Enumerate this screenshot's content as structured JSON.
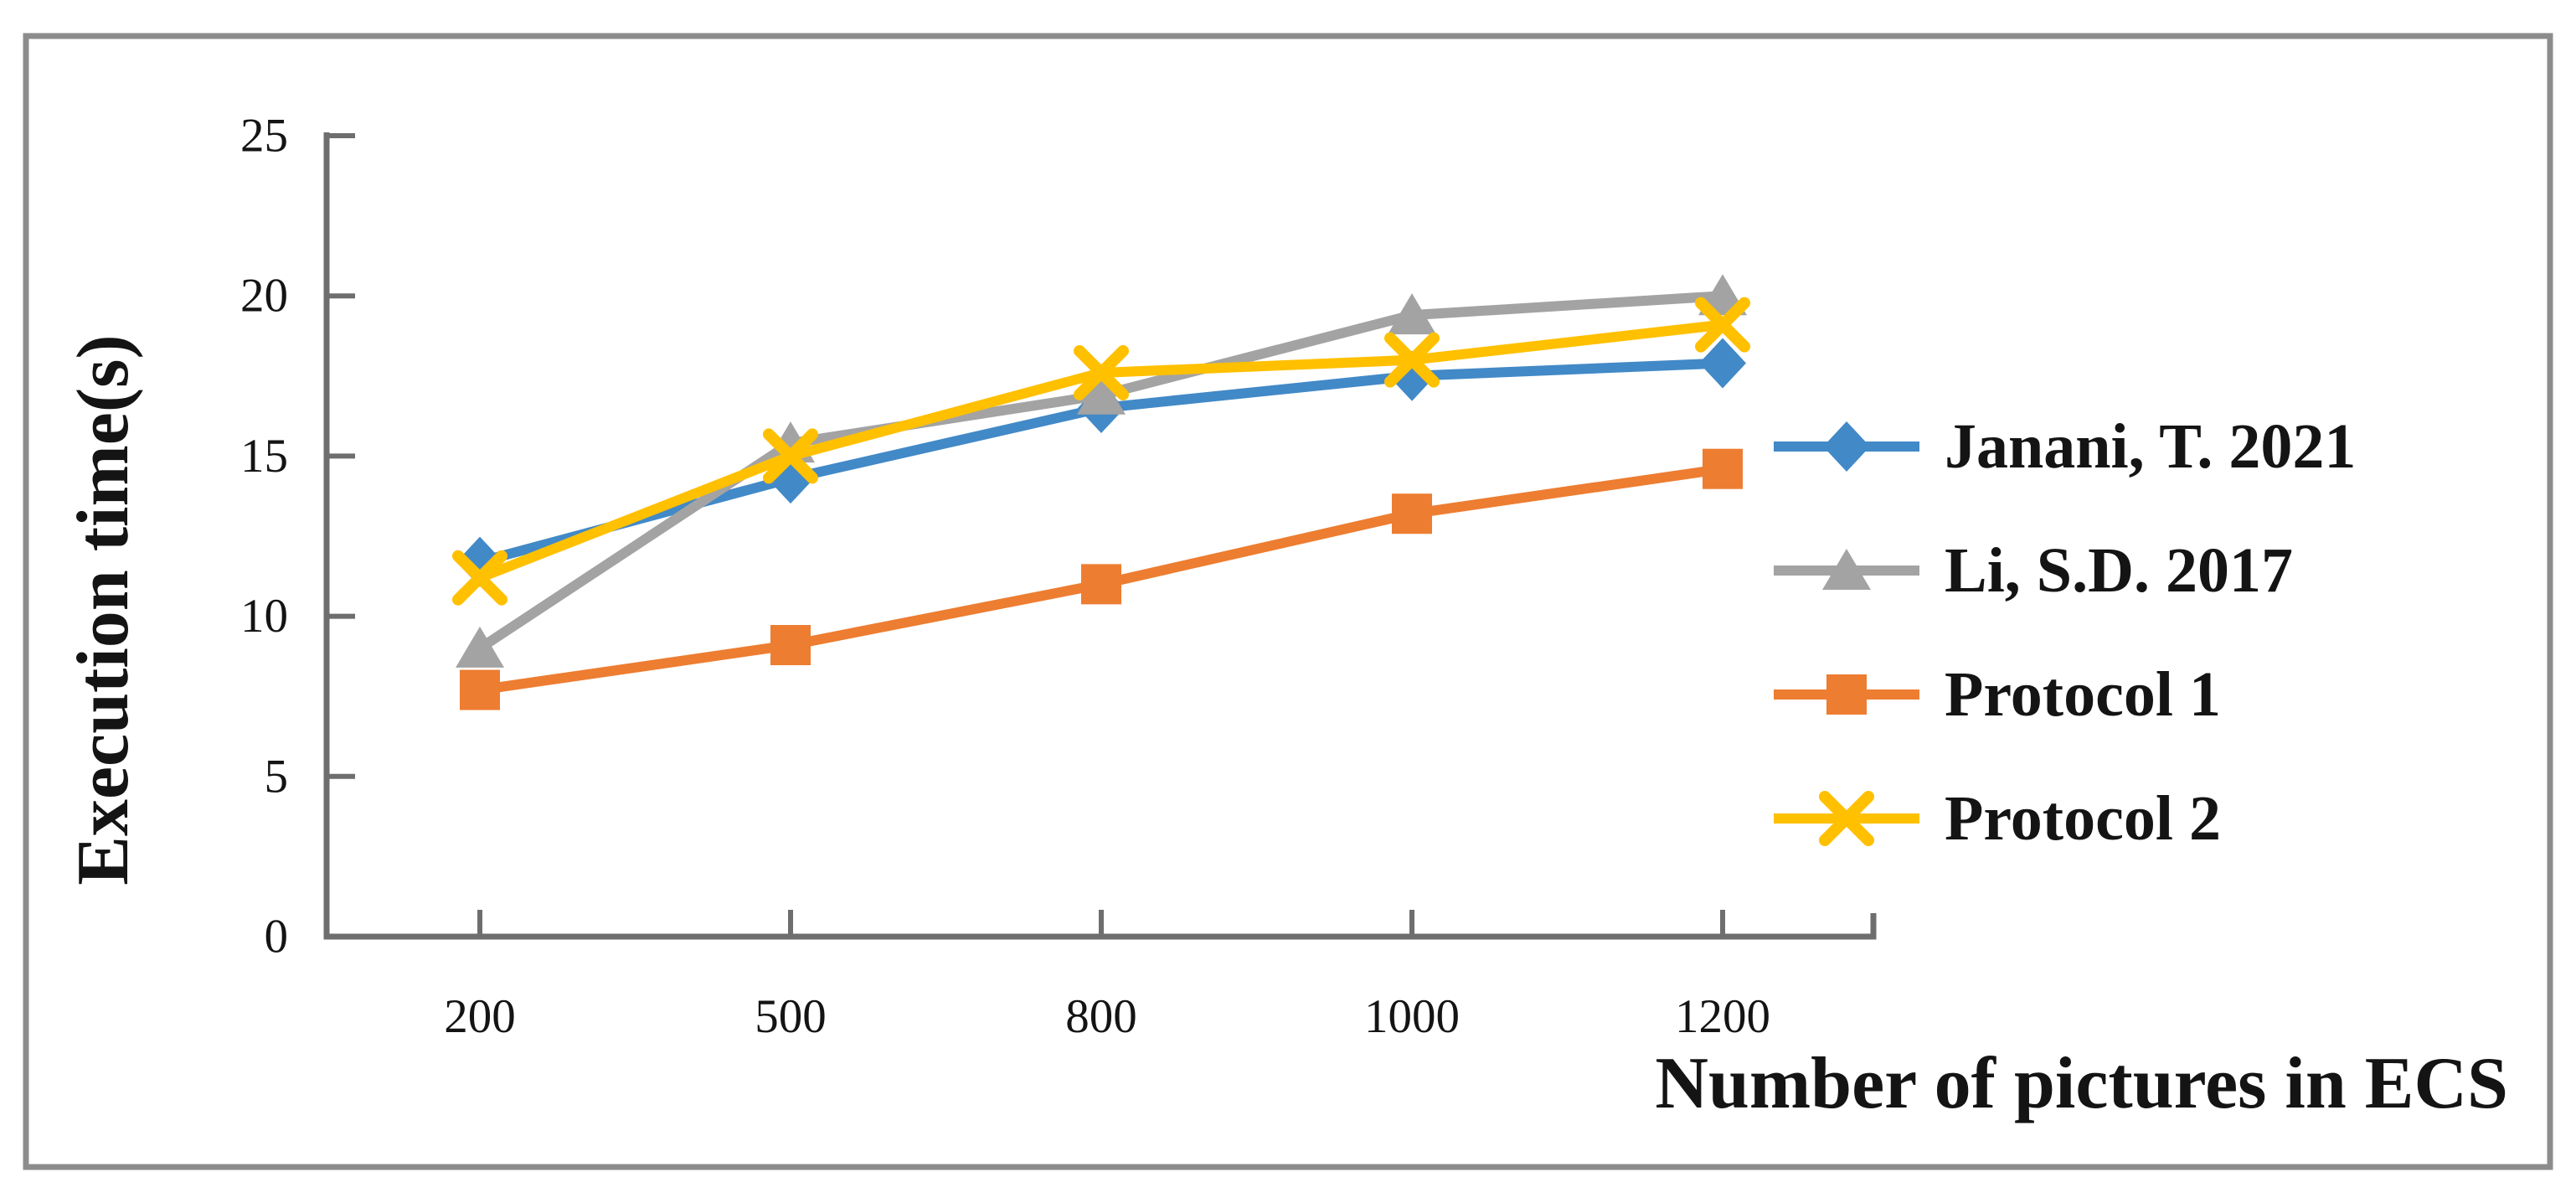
{
  "figure": {
    "background": "#ffffff",
    "border_color": "#8c8c8c"
  },
  "style": {
    "axis_color": "#6e6e6e",
    "text_color": "#141414"
  },
  "chart_data": {
    "type": "line",
    "title": "",
    "xlabel": "Number of pictures in ECS",
    "ylabel": "Execution time(s)",
    "categories": [
      200,
      500,
      800,
      1000,
      1200
    ],
    "x_tick_labels": [
      "200",
      "500",
      "800",
      "1000",
      "1200"
    ],
    "y_ticks": [
      0,
      5,
      10,
      15,
      20,
      25
    ],
    "ylim": [
      0,
      25
    ],
    "grid": false,
    "legend_position": "right",
    "series": [
      {
        "name": "Janani, T. 2021",
        "color": "#4289c7",
        "marker": "diamond",
        "values": [
          11.7,
          14.3,
          16.5,
          17.5,
          17.9
        ]
      },
      {
        "name": "Li, S.D. 2017",
        "color": "#a3a3a3",
        "marker": "triangle",
        "values": [
          9.0,
          15.4,
          16.9,
          19.4,
          20.0
        ]
      },
      {
        "name": "Protocol 1",
        "color": "#ed7d31",
        "marker": "square",
        "values": [
          7.7,
          9.1,
          11.0,
          13.2,
          14.6
        ]
      },
      {
        "name": "Protocol 2",
        "color": "#ffc000",
        "marker": "x",
        "values": [
          11.2,
          15.0,
          17.6,
          18.0,
          19.1
        ]
      }
    ]
  }
}
